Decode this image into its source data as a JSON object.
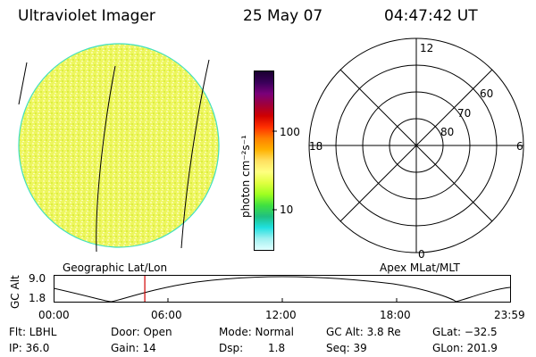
{
  "header": {
    "instrument": "Ultraviolet Imager",
    "date": "25 May 07",
    "time": "04:47:42 UT"
  },
  "colorbar": {
    "unit_label": "photon cm⁻²s⁻¹",
    "ticks": [
      "100",
      "10"
    ],
    "colors": [
      "#1a0030",
      "#3a005a",
      "#7a007a",
      "#a0003a",
      "#d00000",
      "#ff3000",
      "#ff8000",
      "#ffb000",
      "#ffe060",
      "#ffff80",
      "#e0ff40",
      "#a0ff20",
      "#40e040",
      "#20c080",
      "#20e0e0",
      "#a0f0f0",
      "#e0ffff"
    ]
  },
  "polar_grid": {
    "clock_labels": [
      "12",
      "6",
      "0",
      "18"
    ],
    "lat_labels": [
      "60",
      "70",
      "80"
    ]
  },
  "labels": {
    "geographic": "Geographic Lat/Lon",
    "apex": "Apex MLat/MLT"
  },
  "timeline": {
    "axis_label": "GC Alt",
    "y_ticks": [
      "9.0",
      "1.8"
    ],
    "x_ticks": [
      "00:00",
      "06:00",
      "12:00",
      "18:00",
      "23:59"
    ],
    "current_time": "04:47:42",
    "marker_color": "#d00000"
  },
  "info": {
    "row1": {
      "filter": "Flt: LBHL",
      "door": "Door: Open",
      "mode": "Mode: Normal",
      "gc_alt": "GC Alt: 3.8 Re",
      "glat": "GLat: −32.5"
    },
    "row2": {
      "ip": "IP: 36.0",
      "gain": "Gain: 14",
      "dsp_label": "Dsp:",
      "dsp_value": "1.8",
      "seq": "Seq: 39",
      "glon": "GLon: 201.9"
    }
  }
}
